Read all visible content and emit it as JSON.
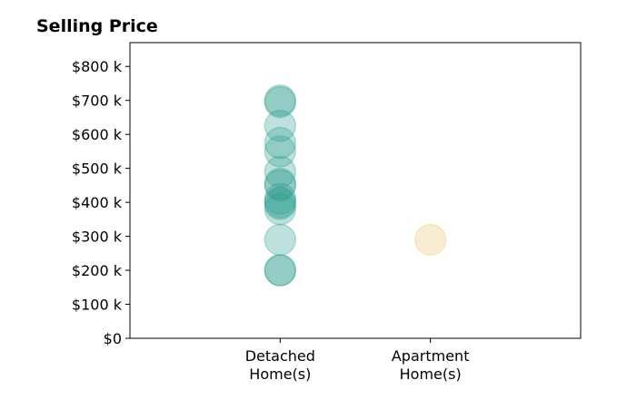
{
  "chart_data": {
    "type": "scatter",
    "title": "Selling Price",
    "xlabel": "",
    "ylabel": "",
    "categories": [
      [
        "Detached",
        "Home(s)"
      ],
      [
        "Apartment",
        "Home(s)"
      ]
    ],
    "xlim": [
      -1,
      2
    ],
    "ylim": [
      0,
      870
    ],
    "y_ticks": [
      0,
      100,
      200,
      300,
      400,
      500,
      600,
      700,
      800
    ],
    "y_tick_labels": [
      "$0",
      "$100 k",
      "$200 k",
      "$300 k",
      "$400 k",
      "$500 k",
      "$600 k",
      "$700 k",
      "$800 k"
    ],
    "grid": false,
    "legend": "none",
    "series": [
      {
        "category_index": 0,
        "color": "#2a9d8f",
        "opacity": 0.3,
        "values": [
          700,
          695,
          625,
          575,
          550,
          490,
          455,
          450,
          410,
          400,
          395,
          380,
          290,
          200,
          200
        ]
      },
      {
        "category_index": 1,
        "color": "#e9c46a",
        "opacity": 0.3,
        "values": [
          290
        ]
      }
    ]
  }
}
